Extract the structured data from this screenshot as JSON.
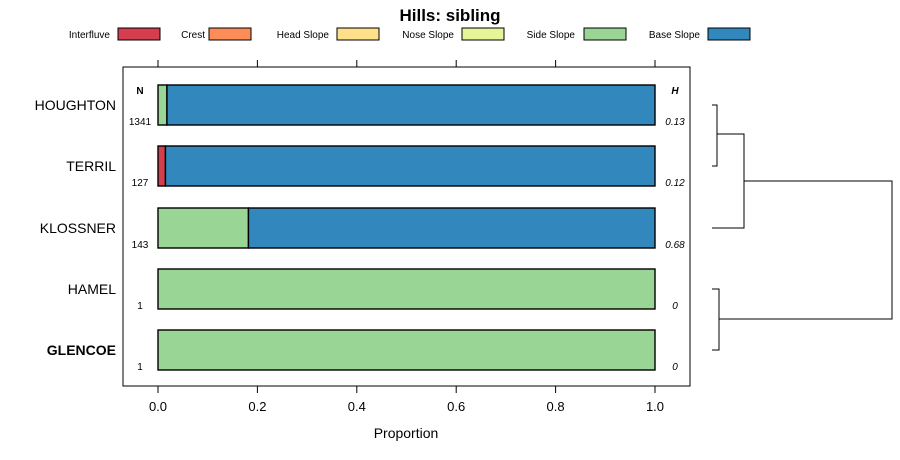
{
  "chart_data": {
    "type": "bar",
    "orientation": "horizontal",
    "stacked": true,
    "title": "Hills: sibling",
    "xlabel": "Proportion",
    "xlim": [
      0,
      1
    ],
    "x_ticks": [
      "0.0",
      "0.2",
      "0.4",
      "0.6",
      "0.8",
      "1.0"
    ],
    "legend": [
      {
        "name": "Interfluve",
        "color": "#d53e4f"
      },
      {
        "name": "Crest",
        "color": "#fc8d59"
      },
      {
        "name": "Head Slope",
        "color": "#fee08b"
      },
      {
        "name": "Nose Slope",
        "color": "#e6f598"
      },
      {
        "name": "Side Slope",
        "color": "#99d594"
      },
      {
        "name": "Base Slope",
        "color": "#3288bd"
      }
    ],
    "n_header": "N",
    "h_header": "H",
    "categories": [
      "HOUGHTON",
      "TERRIL",
      "KLOSSNER",
      "HAMEL",
      "GLENCOE"
    ],
    "bold_category": "GLENCOE",
    "n_values": [
      "1341",
      "127",
      "143",
      "1",
      "1"
    ],
    "h_values": [
      "0.13",
      "0.12",
      "0.68",
      "0",
      "0"
    ],
    "series": [
      {
        "name": "Interfluve",
        "values": [
          0,
          0.015,
          0,
          0,
          0
        ]
      },
      {
        "name": "Crest",
        "values": [
          0,
          0,
          0,
          0,
          0
        ]
      },
      {
        "name": "Head Slope",
        "values": [
          0,
          0,
          0,
          0,
          0
        ]
      },
      {
        "name": "Nose Slope",
        "values": [
          0,
          0,
          0,
          0,
          0
        ]
      },
      {
        "name": "Side Slope",
        "values": [
          0.018,
          0,
          0.182,
          1,
          1
        ]
      },
      {
        "name": "Base Slope",
        "values": [
          0.982,
          0.985,
          0.818,
          0,
          0
        ]
      }
    ],
    "dendrogram": "((HOUGHTON,TERRIL),KLOSSNER),(HAMEL,GLENCOE)"
  }
}
